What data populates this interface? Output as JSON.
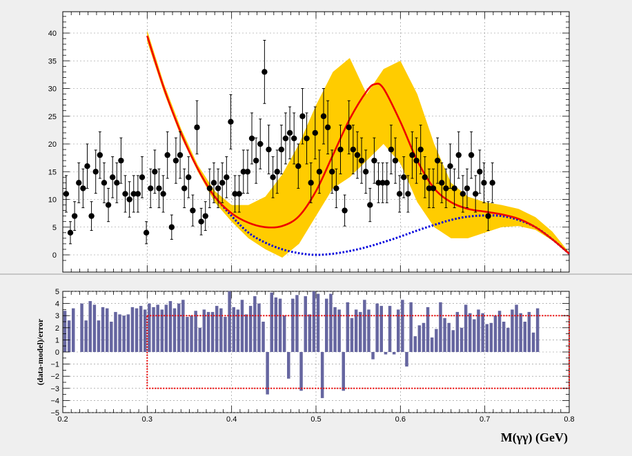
{
  "colors": {
    "band": "#ffcc00",
    "model": "#ee0000",
    "background_model": "#0000dd",
    "points": "#000000",
    "residual_bars": "#6666a0",
    "residual_box": "#ee0000",
    "pad_bg": "#efefef",
    "frame_bg": "#ffffff",
    "grid": "#888888"
  },
  "chart_data": [
    {
      "type": "scatter",
      "xlabel": "",
      "ylabel": "",
      "xlim": [
        0.2,
        0.8
      ],
      "ylim": [
        -1.5,
        44
      ],
      "xticks": [
        "",
        "",
        "",
        "",
        "",
        "",
        ""
      ],
      "yticks": [
        "0",
        "5",
        "10",
        "15",
        "20",
        "25",
        "30",
        "35",
        "40"
      ],
      "grid": true,
      "points": [
        {
          "x": 0.204,
          "y": 11,
          "err": 3.3
        },
        {
          "x": 0.209,
          "y": 4,
          "err": 2.0
        },
        {
          "x": 0.214,
          "y": 7,
          "err": 2.6
        },
        {
          "x": 0.219,
          "y": 13,
          "err": 3.6
        },
        {
          "x": 0.224,
          "y": 12,
          "err": 3.5
        },
        {
          "x": 0.229,
          "y": 16,
          "err": 4.0
        },
        {
          "x": 0.234,
          "y": 7,
          "err": 2.6
        },
        {
          "x": 0.239,
          "y": 15,
          "err": 3.9
        },
        {
          "x": 0.244,
          "y": 18,
          "err": 4.2
        },
        {
          "x": 0.249,
          "y": 13,
          "err": 3.6
        },
        {
          "x": 0.254,
          "y": 9,
          "err": 3.0
        },
        {
          "x": 0.259,
          "y": 14,
          "err": 3.7
        },
        {
          "x": 0.264,
          "y": 13,
          "err": 3.6
        },
        {
          "x": 0.269,
          "y": 17,
          "err": 4.1
        },
        {
          "x": 0.274,
          "y": 11,
          "err": 3.3
        },
        {
          "x": 0.279,
          "y": 10,
          "err": 3.2
        },
        {
          "x": 0.284,
          "y": 11,
          "err": 3.3
        },
        {
          "x": 0.289,
          "y": 11,
          "err": 3.3
        },
        {
          "x": 0.294,
          "y": 14,
          "err": 3.7
        },
        {
          "x": 0.299,
          "y": 4,
          "err": 2.0
        },
        {
          "x": 0.304,
          "y": 12,
          "err": 3.5
        },
        {
          "x": 0.309,
          "y": 15,
          "err": 3.9
        },
        {
          "x": 0.314,
          "y": 12,
          "err": 3.5
        },
        {
          "x": 0.319,
          "y": 11,
          "err": 3.3
        },
        {
          "x": 0.324,
          "y": 18,
          "err": 4.2
        },
        {
          "x": 0.329,
          "y": 5,
          "err": 2.2
        },
        {
          "x": 0.334,
          "y": 17,
          "err": 4.1
        },
        {
          "x": 0.339,
          "y": 18,
          "err": 4.2
        },
        {
          "x": 0.344,
          "y": 12,
          "err": 3.5
        },
        {
          "x": 0.349,
          "y": 14,
          "err": 3.7
        },
        {
          "x": 0.354,
          "y": 8,
          "err": 2.8
        },
        {
          "x": 0.359,
          "y": 23,
          "err": 4.8
        },
        {
          "x": 0.364,
          "y": 6,
          "err": 2.4
        },
        {
          "x": 0.369,
          "y": 7,
          "err": 2.6
        },
        {
          "x": 0.374,
          "y": 12,
          "err": 3.5
        },
        {
          "x": 0.379,
          "y": 13,
          "err": 3.6
        },
        {
          "x": 0.384,
          "y": 12,
          "err": 3.5
        },
        {
          "x": 0.389,
          "y": 13,
          "err": 3.6
        },
        {
          "x": 0.394,
          "y": 14,
          "err": 3.7
        },
        {
          "x": 0.399,
          "y": 24,
          "err": 4.9
        },
        {
          "x": 0.404,
          "y": 11,
          "err": 3.3
        },
        {
          "x": 0.409,
          "y": 11,
          "err": 3.3
        },
        {
          "x": 0.414,
          "y": 15,
          "err": 3.9
        },
        {
          "x": 0.419,
          "y": 15,
          "err": 3.9
        },
        {
          "x": 0.424,
          "y": 21,
          "err": 4.6
        },
        {
          "x": 0.429,
          "y": 17,
          "err": 4.1
        },
        {
          "x": 0.434,
          "y": 20,
          "err": 4.5
        },
        {
          "x": 0.439,
          "y": 33,
          "err": 5.7
        },
        {
          "x": 0.444,
          "y": 19,
          "err": 4.4
        },
        {
          "x": 0.449,
          "y": 14,
          "err": 3.7
        },
        {
          "x": 0.454,
          "y": 15,
          "err": 3.9
        },
        {
          "x": 0.459,
          "y": 19,
          "err": 4.4
        },
        {
          "x": 0.464,
          "y": 21,
          "err": 4.6
        },
        {
          "x": 0.469,
          "y": 22,
          "err": 4.7
        },
        {
          "x": 0.474,
          "y": 21,
          "err": 4.6
        },
        {
          "x": 0.479,
          "y": 16,
          "err": 4.0
        },
        {
          "x": 0.484,
          "y": 25,
          "err": 5.0
        },
        {
          "x": 0.489,
          "y": 21,
          "err": 4.6
        },
        {
          "x": 0.494,
          "y": 13,
          "err": 3.6
        },
        {
          "x": 0.499,
          "y": 22,
          "err": 4.7
        },
        {
          "x": 0.504,
          "y": 15,
          "err": 3.9
        },
        {
          "x": 0.509,
          "y": 25,
          "err": 5.0
        },
        {
          "x": 0.514,
          "y": 23,
          "err": 4.8
        },
        {
          "x": 0.519,
          "y": 15,
          "err": 3.9
        },
        {
          "x": 0.524,
          "y": 12,
          "err": 3.5
        },
        {
          "x": 0.529,
          "y": 19,
          "err": 4.4
        },
        {
          "x": 0.534,
          "y": 8,
          "err": 2.8
        },
        {
          "x": 0.539,
          "y": 23,
          "err": 4.8
        },
        {
          "x": 0.544,
          "y": 19,
          "err": 4.4
        },
        {
          "x": 0.549,
          "y": 18,
          "err": 4.2
        },
        {
          "x": 0.554,
          "y": 17,
          "err": 4.1
        },
        {
          "x": 0.559,
          "y": 15,
          "err": 3.9
        },
        {
          "x": 0.564,
          "y": 9,
          "err": 3.0
        },
        {
          "x": 0.569,
          "y": 17,
          "err": 4.1
        },
        {
          "x": 0.574,
          "y": 13,
          "err": 3.6
        },
        {
          "x": 0.579,
          "y": 13,
          "err": 3.6
        },
        {
          "x": 0.584,
          "y": 13,
          "err": 3.6
        },
        {
          "x": 0.589,
          "y": 19,
          "err": 4.4
        },
        {
          "x": 0.594,
          "y": 17,
          "err": 4.1
        },
        {
          "x": 0.599,
          "y": 11,
          "err": 3.3
        },
        {
          "x": 0.604,
          "y": 14,
          "err": 3.7
        },
        {
          "x": 0.609,
          "y": 11,
          "err": 3.3
        },
        {
          "x": 0.614,
          "y": 18,
          "err": 4.2
        },
        {
          "x": 0.619,
          "y": 17,
          "err": 4.1
        },
        {
          "x": 0.624,
          "y": 19,
          "err": 4.4
        },
        {
          "x": 0.629,
          "y": 14,
          "err": 3.7
        },
        {
          "x": 0.634,
          "y": 12,
          "err": 3.5
        },
        {
          "x": 0.639,
          "y": 12,
          "err": 3.5
        },
        {
          "x": 0.644,
          "y": 17,
          "err": 4.1
        },
        {
          "x": 0.649,
          "y": 13,
          "err": 3.6
        },
        {
          "x": 0.654,
          "y": 12,
          "err": 3.5
        },
        {
          "x": 0.659,
          "y": 16,
          "err": 4.0
        },
        {
          "x": 0.664,
          "y": 12,
          "err": 3.5
        },
        {
          "x": 0.669,
          "y": 18,
          "err": 4.2
        },
        {
          "x": 0.674,
          "y": 11,
          "err": 3.3
        },
        {
          "x": 0.679,
          "y": 12,
          "err": 3.5
        },
        {
          "x": 0.684,
          "y": 18,
          "err": 4.2
        },
        {
          "x": 0.689,
          "y": 11,
          "err": 3.3
        },
        {
          "x": 0.694,
          "y": 15,
          "err": 3.9
        },
        {
          "x": 0.699,
          "y": 13,
          "err": 3.6
        },
        {
          "x": 0.704,
          "y": 7,
          "err": 2.6
        },
        {
          "x": 0.709,
          "y": 13,
          "err": 3.6
        }
      ],
      "series": [
        {
          "name": "",
          "style": "solid",
          "x": [
            0.3,
            0.32,
            0.34,
            0.36,
            0.38,
            0.4,
            0.42,
            0.44,
            0.46,
            0.48,
            0.5,
            0.52,
            0.54,
            0.56,
            0.57,
            0.58,
            0.6,
            0.62,
            0.64,
            0.66,
            0.68,
            0.7,
            0.72,
            0.74,
            0.76,
            0.78,
            0.8
          ],
          "y": [
            39.5,
            30,
            22,
            15.5,
            10.5,
            7.5,
            5.8,
            5.0,
            5.2,
            7.0,
            11.5,
            18,
            24.5,
            29.5,
            30.8,
            30.0,
            24,
            17,
            12,
            9.5,
            8.3,
            7.8,
            7.3,
            6.5,
            5.0,
            2.8,
            0.2
          ]
        },
        {
          "name": "",
          "style": "dotted",
          "x": [
            0.38,
            0.4,
            0.42,
            0.44,
            0.46,
            0.48,
            0.5,
            0.52,
            0.54,
            0.56,
            0.58,
            0.6,
            0.62,
            0.64,
            0.66,
            0.68,
            0.7,
            0.72,
            0.74,
            0.76,
            0.78,
            0.8
          ],
          "y": [
            10.5,
            7.0,
            4.0,
            2.2,
            1.0,
            0.3,
            0.0,
            0.2,
            0.7,
            1.4,
            2.3,
            3.3,
            4.4,
            5.4,
            6.3,
            6.9,
            7.1,
            7.0,
            6.3,
            5.0,
            2.8,
            0.2
          ]
        }
      ],
      "band": {
        "x": [
          0.3,
          0.32,
          0.34,
          0.36,
          0.38,
          0.4,
          0.42,
          0.44,
          0.46,
          0.48,
          0.5,
          0.52,
          0.54,
          0.56,
          0.58,
          0.6,
          0.62,
          0.64,
          0.66,
          0.68,
          0.7,
          0.72,
          0.74,
          0.76,
          0.78,
          0.8
        ],
        "low": [
          38.5,
          29.2,
          21.3,
          15.0,
          9.5,
          6.0,
          3.0,
          1.0,
          -0.5,
          2.0,
          7.0,
          12.0,
          14.0,
          17.0,
          20.0,
          16.5,
          9.5,
          5.0,
          3.0,
          3.0,
          4.0,
          5.0,
          5.2,
          4.5,
          2.6,
          0.1
        ],
        "high": [
          40.5,
          30.8,
          22.8,
          16.2,
          11.5,
          9.0,
          9.0,
          10.5,
          14.5,
          20.0,
          27.0,
          33.0,
          35.5,
          29.0,
          33.5,
          35.0,
          29.0,
          20.0,
          13.0,
          10.5,
          9.5,
          9.0,
          8.3,
          6.8,
          4.2,
          0.4
        ]
      }
    },
    {
      "type": "bar",
      "xlabel": "M(γγ) (GeV)",
      "ylabel": "(data-model)/error",
      "xlim": [
        0.2,
        0.8
      ],
      "ylim": [
        -5,
        5
      ],
      "xticks": [
        "0.2",
        "0.3",
        "0.4",
        "0.5",
        "0.6",
        "0.7",
        "0.8"
      ],
      "yticks": [
        "−5",
        "−4",
        "−3",
        "−2",
        "−1",
        "0",
        "1",
        "2",
        "3",
        "4",
        "5"
      ],
      "grid": true,
      "box": {
        "x": [
          0.3,
          0.8
        ],
        "y": [
          -3,
          3
        ]
      },
      "bin_width": 0.005,
      "x_start": 0.2,
      "values": [
        3.4,
        2.6,
        3.6,
        0,
        4.0,
        2.6,
        4.2,
        3.9,
        2.6,
        3.7,
        3.6,
        2.5,
        3.3,
        3.1,
        3.0,
        3.1,
        3.7,
        3.6,
        3.8,
        3.5,
        4.0,
        3.7,
        3.9,
        3.5,
        3.9,
        4.2,
        3.6,
        4.0,
        4.3,
        2.9,
        3.0,
        3.4,
        2.0,
        3.5,
        3.3,
        3.3,
        3.8,
        3.6,
        2.9,
        5.0,
        3.7,
        3.5,
        4.3,
        3.1,
        3.8,
        4.6,
        4.0,
        2.5,
        -3.5,
        4.9,
        4.5,
        4.4,
        3.0,
        -2.2,
        4.4,
        4.7,
        -3.2,
        4.6,
        3.1,
        5.0,
        4.8,
        -3.8,
        4.4,
        4.8,
        3.7,
        3.5,
        -3.2,
        4.1,
        2.8,
        3.5,
        3.3,
        4.3,
        3.5,
        -0.6,
        4.0,
        3.8,
        -0.2,
        3.8,
        -0.2,
        3.5,
        4.3,
        -1.2,
        4.1,
        1.3,
        2.2,
        2.4,
        3.7,
        1.2,
        1.9,
        4.1,
        2.8,
        2.4,
        1.8,
        3.3,
        2.0,
        3.9,
        3.2,
        2.7,
        3.5,
        3.2,
        2.3,
        2.4,
        3.0,
        3.4,
        2.5,
        2.0,
        3.5,
        3.9,
        3.2,
        2.5,
        3.3,
        1.6,
        3.6
      ]
    }
  ]
}
